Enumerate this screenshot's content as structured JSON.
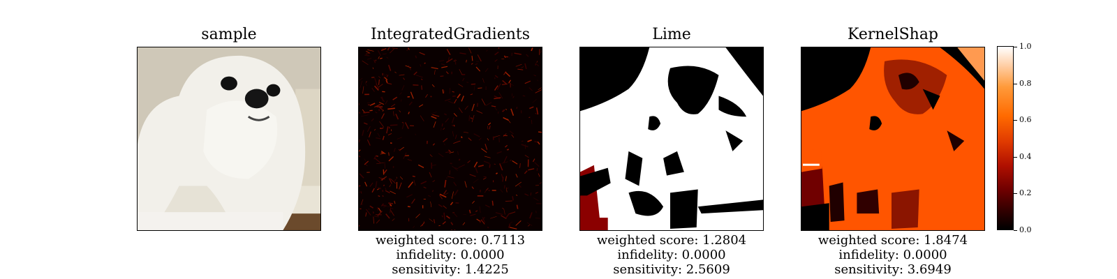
{
  "chart_data": {
    "type": "heatmap",
    "panels": [
      {
        "title": "sample"
      },
      {
        "title": "IntegratedGradients",
        "metrics": {
          "weighted": "weighted score: 0.7113",
          "infidelity": "infidelity: 0.0000",
          "sensitivity": "sensitivity: 1.4225"
        }
      },
      {
        "title": "Lime",
        "metrics": {
          "weighted": "weighted score: 1.2804",
          "infidelity": "infidelity: 0.0000",
          "sensitivity": "sensitivity: 2.5609"
        }
      },
      {
        "title": "KernelShap",
        "metrics": {
          "weighted": "weighted score: 1.8474",
          "infidelity": "infidelity: 0.0000",
          "sensitivity": "sensitivity: 3.6949"
        }
      }
    ],
    "colorbar": {
      "range": [
        0.0,
        1.0
      ],
      "ticks": [
        0.0,
        0.2,
        0.4,
        0.6,
        0.8,
        1.0
      ],
      "tick_labels": [
        "0.0",
        "0.2",
        "0.4",
        "0.6",
        "0.8",
        "1.0"
      ],
      "colormap": "gist_heat"
    }
  }
}
